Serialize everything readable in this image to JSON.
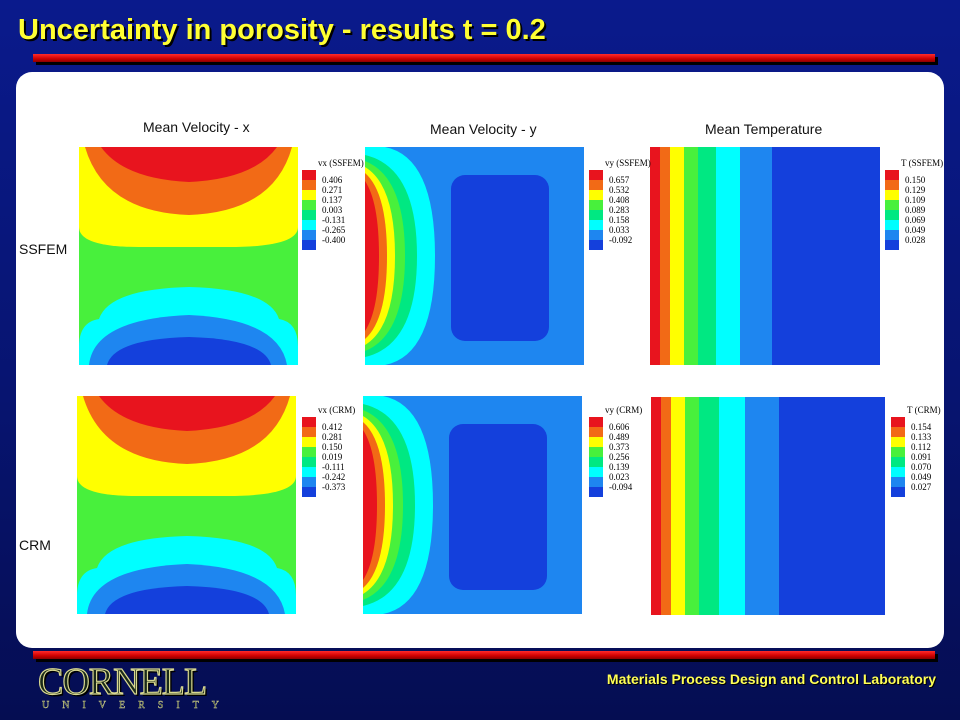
{
  "title": "Uncertainty in porosity - results t = 0.2",
  "columns": [
    "Mean Velocity - x",
    "Mean Velocity - y",
    "Mean Temperature"
  ],
  "rows": [
    "SSFEM",
    "CRM"
  ],
  "colors": [
    "#e8141e",
    "#f26a16",
    "#ffff00",
    "#48f03c",
    "#00e882",
    "#00ffff",
    "#1e86f0",
    "#1440dc"
  ],
  "legends": {
    "vx_ssfem": {
      "title": "vx (SSFEM)",
      "values": [
        "0.406",
        "0.271",
        "0.137",
        "0.003",
        "-0.131",
        "-0.265",
        "-0.400"
      ]
    },
    "vy_ssfem": {
      "title": "vy (SSFEM)",
      "values": [
        "0.657",
        "0.532",
        "0.408",
        "0.283",
        "0.158",
        "0.033",
        "-0.092"
      ]
    },
    "t_ssfem": {
      "title": "T (SSFEM)",
      "values": [
        "0.150",
        "0.129",
        "0.109",
        "0.089",
        "0.069",
        "0.049",
        "0.028"
      ]
    },
    "vx_crm": {
      "title": "vx (CRM)",
      "values": [
        "0.412",
        "0.281",
        "0.150",
        "0.019",
        "-0.111",
        "-0.242",
        "-0.373"
      ]
    },
    "vy_crm": {
      "title": "vy (CRM)",
      "values": [
        "0.606",
        "0.489",
        "0.373",
        "0.256",
        "0.139",
        "0.023",
        "-0.094"
      ]
    },
    "t_crm": {
      "title": "T (CRM)",
      "values": [
        "0.154",
        "0.133",
        "0.112",
        "0.091",
        "0.070",
        "0.049",
        "0.027"
      ]
    }
  },
  "footer": {
    "lab": "Materials Process Design and Control Laboratory",
    "logo_main": "CORNELL",
    "logo_sub": "UNIVERSITY"
  }
}
